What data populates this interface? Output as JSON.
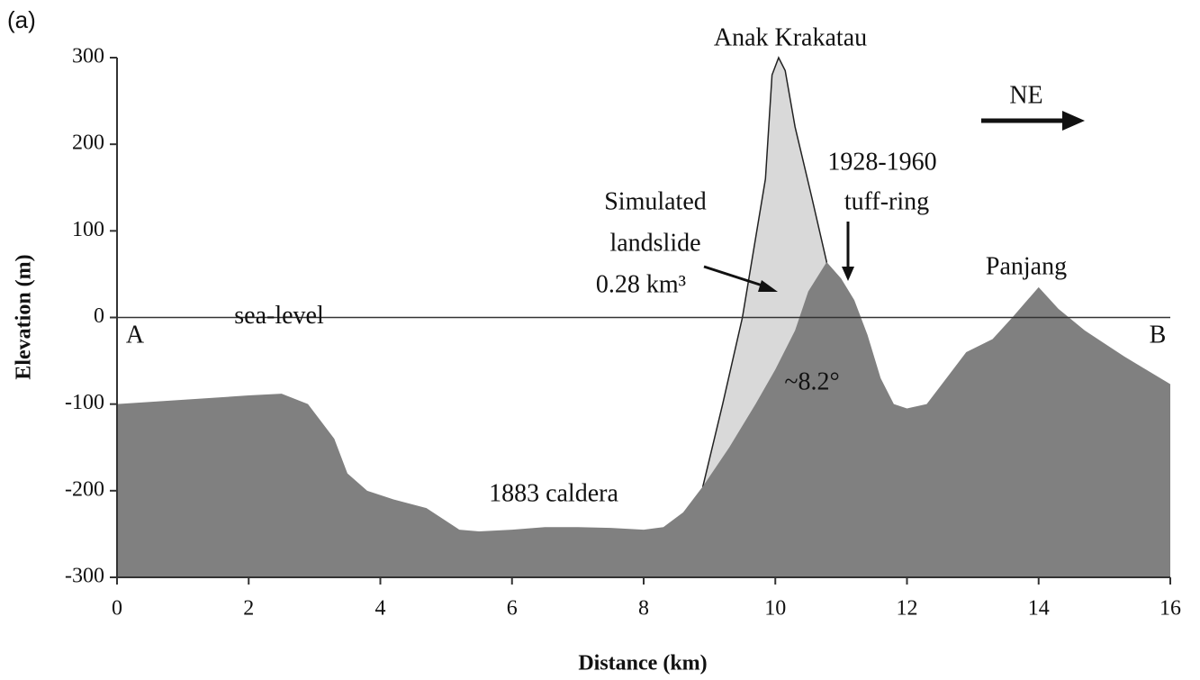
{
  "chart_data": {
    "type": "area",
    "panel_label": "(a)",
    "x_label": "Distance (km)",
    "y_label": "Elevation (m)",
    "xlim": [
      0,
      16
    ],
    "ylim": [
      -300,
      300
    ],
    "xticks": [
      0,
      2,
      4,
      6,
      8,
      10,
      12,
      14,
      16
    ],
    "yticks": [
      -300,
      -200,
      -100,
      0,
      100,
      200,
      300
    ],
    "sea_level": {
      "value": 0,
      "label": "sea-level"
    },
    "series": [
      {
        "color": "#d9d9d9",
        "x": [
          8.9,
          9.2,
          9.5,
          9.85,
          9.95,
          10.05,
          10.15,
          10.3,
          10.55,
          10.78
        ],
        "values": [
          -195,
          -100,
          0,
          160,
          280,
          300,
          285,
          220,
          140,
          64
        ]
      },
      {
        "color": "#808080",
        "x": [
          0,
          1,
          2,
          2.5,
          2.9,
          3.3,
          3.5,
          3.8,
          4.2,
          4.7,
          5.2,
          5.5,
          6,
          6.5,
          7,
          7.5,
          8,
          8.3,
          8.6,
          8.9,
          9.3,
          9.7,
          10.0,
          10.3,
          10.5,
          10.78,
          11.0,
          11.2,
          11.4,
          11.6,
          11.8,
          12.0,
          12.3,
          12.6,
          12.9,
          13.3,
          13.6,
          14.0,
          14.3,
          14.7,
          15.3,
          16
        ],
        "values": [
          -100,
          -95,
          -90,
          -88,
          -100,
          -140,
          -180,
          -200,
          -210,
          -220,
          -245,
          -247,
          -245,
          -242,
          -242,
          -243,
          -245,
          -242,
          -225,
          -195,
          -150,
          -100,
          -60,
          -15,
          30,
          64,
          45,
          20,
          -20,
          -70,
          -100,
          -105,
          -100,
          -70,
          -40,
          -25,
          0,
          35,
          10,
          -15,
          -45,
          -77
        ]
      }
    ],
    "annotations": [
      "Anak Krakatau",
      "NE",
      "1928-1960",
      "tuff-ring",
      "Simulated",
      "landslide",
      "0.28 km³",
      "Panjang",
      "A",
      "B",
      "~8.2°",
      "1883 caldera"
    ]
  }
}
